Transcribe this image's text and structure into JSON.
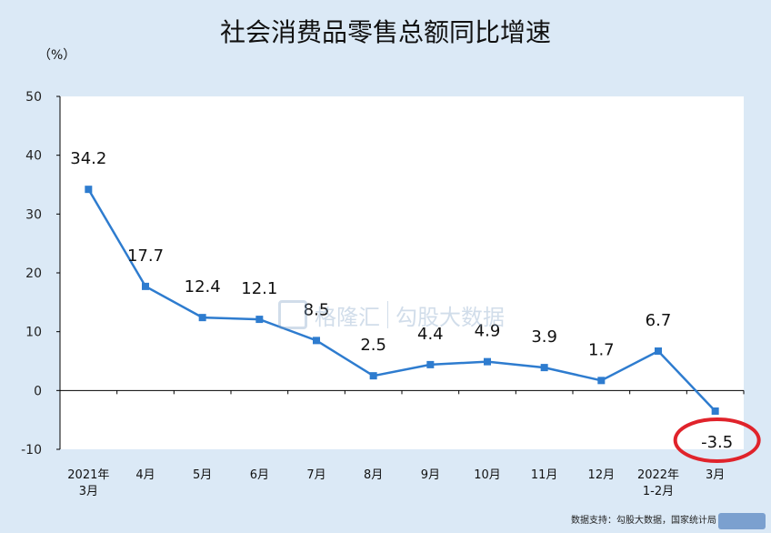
{
  "chart_data": {
    "type": "line",
    "title": "社会消费品零售总额同比增速",
    "unit": "（%）",
    "categories": [
      "2021年\n3月",
      "4月",
      "5月",
      "6月",
      "7月",
      "8月",
      "9月",
      "10月",
      "11月",
      "12月",
      "2022年\n1-2月",
      "3月"
    ],
    "series": [
      {
        "values": [
          34.2,
          17.7,
          12.4,
          12.1,
          8.5,
          2.5,
          4.4,
          4.9,
          3.9,
          1.7,
          6.7,
          -3.5
        ]
      }
    ],
    "data_labels": [
      "34.2",
      "17.7",
      "12.4",
      "12.1",
      "8.5",
      "2.5",
      "4.4",
      "4.9",
      "3.9",
      "1.7",
      "6.7",
      "-3.5"
    ],
    "yticks": [
      50,
      40,
      30,
      20,
      10,
      0,
      -10
    ],
    "ylim": [
      -10,
      50
    ],
    "line_color": "#2e7ccf",
    "highlight_color": "#e0232b",
    "highlight_index": 11
  },
  "watermark": {
    "brand1": "格隆汇",
    "brand2": "勾股大数据"
  },
  "source_note": "数据支持：勾股大数据，国家统计局"
}
